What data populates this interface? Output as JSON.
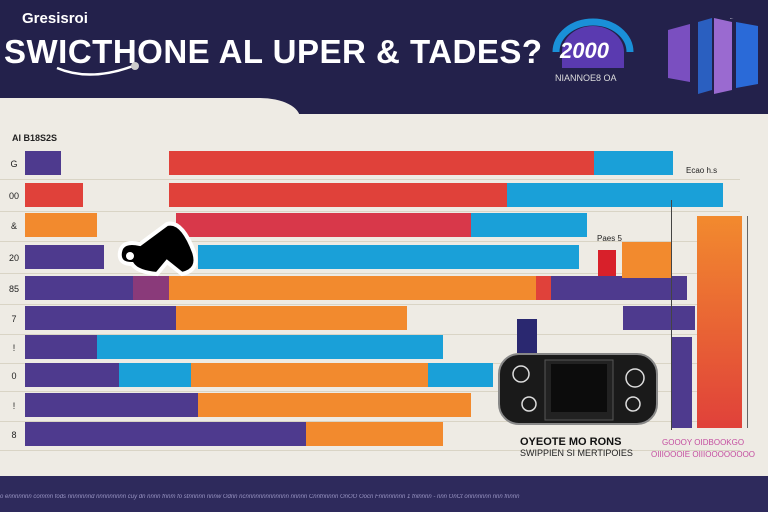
{
  "header": {
    "kicker": "Gresisroi",
    "title": "SWICTHONE AL UPER & TADES?",
    "badge_number": "2000",
    "badge_sub": "NIANNOE8 OA"
  },
  "colors": {
    "navy": "#23214b",
    "purple": "#4e3a8e",
    "red": "#e0413a",
    "orange": "#f28a2e",
    "blue": "#1aa0d8",
    "magenta": "#8a3a7a",
    "crimson": "#d8384a",
    "beige": "#eeebe4"
  },
  "chart_data": {
    "type": "bar",
    "orientation": "horizontal",
    "stacked": true,
    "title": "",
    "axis_header": "AI B18S2S",
    "categories": [
      "G",
      "00",
      "&",
      "20",
      "85",
      "7",
      "!",
      "0",
      "!",
      "8"
    ],
    "xlim": [
      0,
      100
    ],
    "grid": true,
    "rows": [
      [
        {
          "from": 0,
          "to": 5,
          "color": "purple"
        },
        {
          "from": 20,
          "to": 79,
          "color": "red"
        },
        {
          "from": 79,
          "to": 90,
          "color": "blue"
        }
      ],
      [
        {
          "from": 0,
          "to": 8,
          "color": "red"
        },
        {
          "from": 20,
          "to": 67,
          "color": "red"
        },
        {
          "from": 67,
          "to": 97,
          "color": "blue"
        }
      ],
      [
        {
          "from": 0,
          "to": 10,
          "color": "orange"
        },
        {
          "from": 21,
          "to": 62,
          "color": "crimson"
        },
        {
          "from": 62,
          "to": 78,
          "color": "blue"
        }
      ],
      [
        {
          "from": 0,
          "to": 11,
          "color": "purple"
        },
        {
          "from": 24,
          "to": 77,
          "color": "blue"
        }
      ],
      [
        {
          "from": 0,
          "to": 15,
          "color": "purple"
        },
        {
          "from": 15,
          "to": 20,
          "color": "magenta"
        },
        {
          "from": 20,
          "to": 71,
          "color": "orange"
        },
        {
          "from": 71,
          "to": 73,
          "color": "red"
        },
        {
          "from": 73,
          "to": 92,
          "color": "purple"
        }
      ],
      [
        {
          "from": 0,
          "to": 21,
          "color": "purple"
        },
        {
          "from": 21,
          "to": 53,
          "color": "orange"
        },
        {
          "from": 83,
          "to": 93,
          "color": "purple"
        }
      ],
      [
        {
          "from": 0,
          "to": 10,
          "color": "purple"
        },
        {
          "from": 10,
          "to": 58,
          "color": "blue"
        }
      ],
      [
        {
          "from": 0,
          "to": 13,
          "color": "purple"
        },
        {
          "from": 13,
          "to": 23,
          "color": "blue"
        },
        {
          "from": 23,
          "to": 56,
          "color": "orange"
        },
        {
          "from": 56,
          "to": 65,
          "color": "blue"
        }
      ],
      [
        {
          "from": 0,
          "to": 24,
          "color": "purple"
        },
        {
          "from": 24,
          "to": 62,
          "color": "orange"
        }
      ],
      [
        {
          "from": 0,
          "to": 39,
          "color": "purple"
        },
        {
          "from": 39,
          "to": 58,
          "color": "orange"
        }
      ]
    ],
    "side_bars": [
      {
        "color": "orange",
        "value": 100
      },
      {
        "color": "purple",
        "value": 43
      },
      {
        "color": "orange",
        "value": 17
      }
    ],
    "annotations": [
      "Ecao h.s",
      "Paes 5"
    ]
  },
  "captions": {
    "console_title": "OYEOTE  MO RONS",
    "console_sub": "SWIPPIEN SI MERTIPOIES",
    "pink_1": "GOOOY  OIDBOOKGO",
    "pink_2": "OIIIOOOIE OIIIOOOOOOOO"
  },
  "footer": {
    "text": "o ennnnnnn commn fods nnnnnnnd nnnnnnnnn cuy dn nnnn fnnm fo stnnnnn nnnw Odnn ncnnnnnnnnnnnnn nnnnn Cnnfnnnnn OnOO Oocn Fnnnnnnnn 1 fnlnnnn - nnn OnCt onnnnnnn nnn fnnnn"
  }
}
